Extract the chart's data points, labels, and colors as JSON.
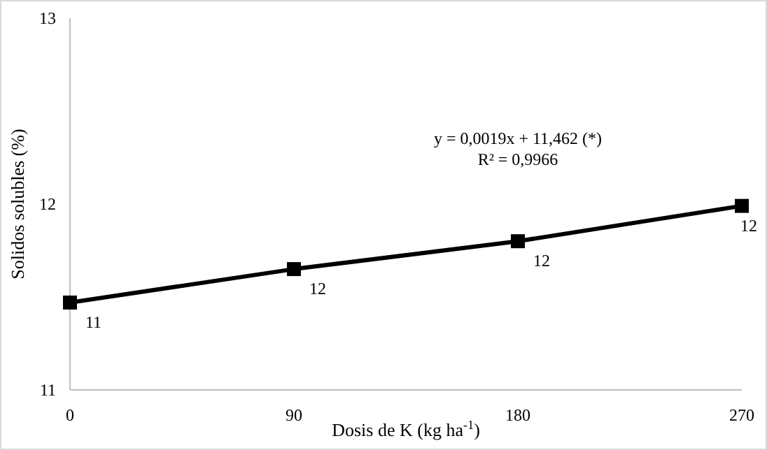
{
  "chart_data": {
    "type": "line",
    "xlabel": "Dosis de K (kg ha$^{-1}$)",
    "ylabel": "Solidos solubles (%)",
    "x": [
      0,
      90,
      180,
      270
    ],
    "series": [
      {
        "color": "#000000",
        "values": [
          11.47,
          11.65,
          11.8,
          11.99
        ],
        "value_labels": [
          "11",
          "12",
          "12",
          "12"
        ]
      }
    ],
    "xlim": [
      0,
      270
    ],
    "xticks": [
      0,
      90,
      180,
      270
    ],
    "ylim": [
      11,
      13
    ],
    "yticks": [
      11,
      12,
      13
    ],
    "annotations": [
      "y = 0,0019x + 11,462 (*)",
      "R² = 0,9966"
    ],
    "marker": "square",
    "line_style": "solid",
    "grid": false
  }
}
